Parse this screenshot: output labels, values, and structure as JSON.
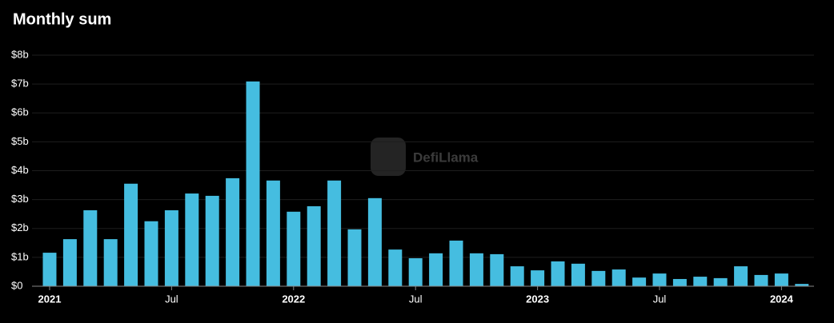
{
  "chart_data": {
    "type": "bar",
    "title": "Monthly sum",
    "watermark": "DefiLlama",
    "categories": [
      "2021",
      null,
      null,
      null,
      null,
      null,
      "Jul",
      null,
      null,
      null,
      null,
      null,
      "2022",
      null,
      null,
      null,
      null,
      null,
      "Jul",
      null,
      null,
      null,
      null,
      null,
      "2023",
      null,
      null,
      null,
      null,
      null,
      "Jul",
      null,
      null,
      null,
      null,
      null,
      "2024",
      null
    ],
    "values": [
      1.16,
      1.63,
      2.63,
      1.63,
      3.55,
      2.25,
      2.63,
      3.21,
      3.13,
      3.74,
      7.09,
      3.66,
      2.58,
      2.77,
      3.66,
      1.97,
      3.05,
      1.27,
      0.97,
      1.14,
      1.58,
      1.14,
      1.11,
      0.69,
      0.55,
      0.86,
      0.78,
      0.53,
      0.58,
      0.3,
      0.44,
      0.25,
      0.33,
      0.28,
      0.69,
      0.39,
      0.44,
      0.08
    ],
    "color": "#45bde0",
    "ylim": [
      0,
      8
    ],
    "yticks": [
      {
        "value": 0,
        "label": "$0"
      },
      {
        "value": 1,
        "label": "$1b"
      },
      {
        "value": 2,
        "label": "$2b"
      },
      {
        "value": 3,
        "label": "$3b"
      },
      {
        "value": 4,
        "label": "$4b"
      },
      {
        "value": 5,
        "label": "$5b"
      },
      {
        "value": 6,
        "label": "$6b"
      },
      {
        "value": 7,
        "label": "$7b"
      },
      {
        "value": 8,
        "label": "$8b"
      }
    ],
    "grid": true
  }
}
